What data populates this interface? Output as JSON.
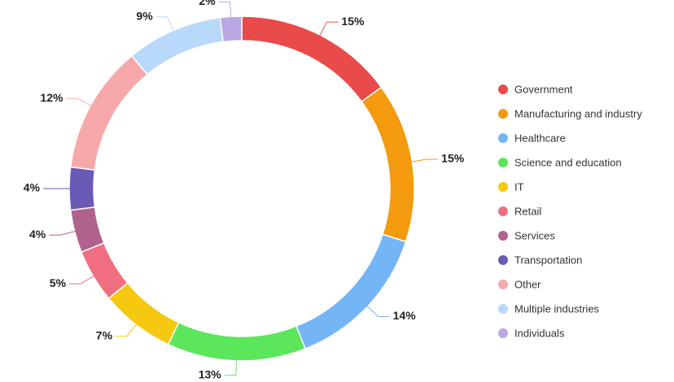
{
  "chart_data": {
    "type": "donut",
    "categories": [
      "Government",
      "Manufacturing and industry",
      "Healthcare",
      "Science and education",
      "IT",
      "Retail",
      "Services",
      "Transportation",
      "Other",
      "Multiple industries",
      "Individuals"
    ],
    "values": [
      15,
      15,
      14,
      13,
      7,
      5,
      4,
      4,
      12,
      9,
      2
    ],
    "value_labels": [
      "15%",
      "15%",
      "14%",
      "13%",
      "7%",
      "5%",
      "4%",
      "4%",
      "12%",
      "9%",
      "2%"
    ],
    "colors": [
      "#e94a4a",
      "#f39a0e",
      "#74b5f5",
      "#5ce65c",
      "#f6c80f",
      "#ef6f80",
      "#b0628c",
      "#6a5ab6",
      "#f7a9a9",
      "#b8d9f9",
      "#b9a8e2"
    ],
    "legend": "right"
  }
}
